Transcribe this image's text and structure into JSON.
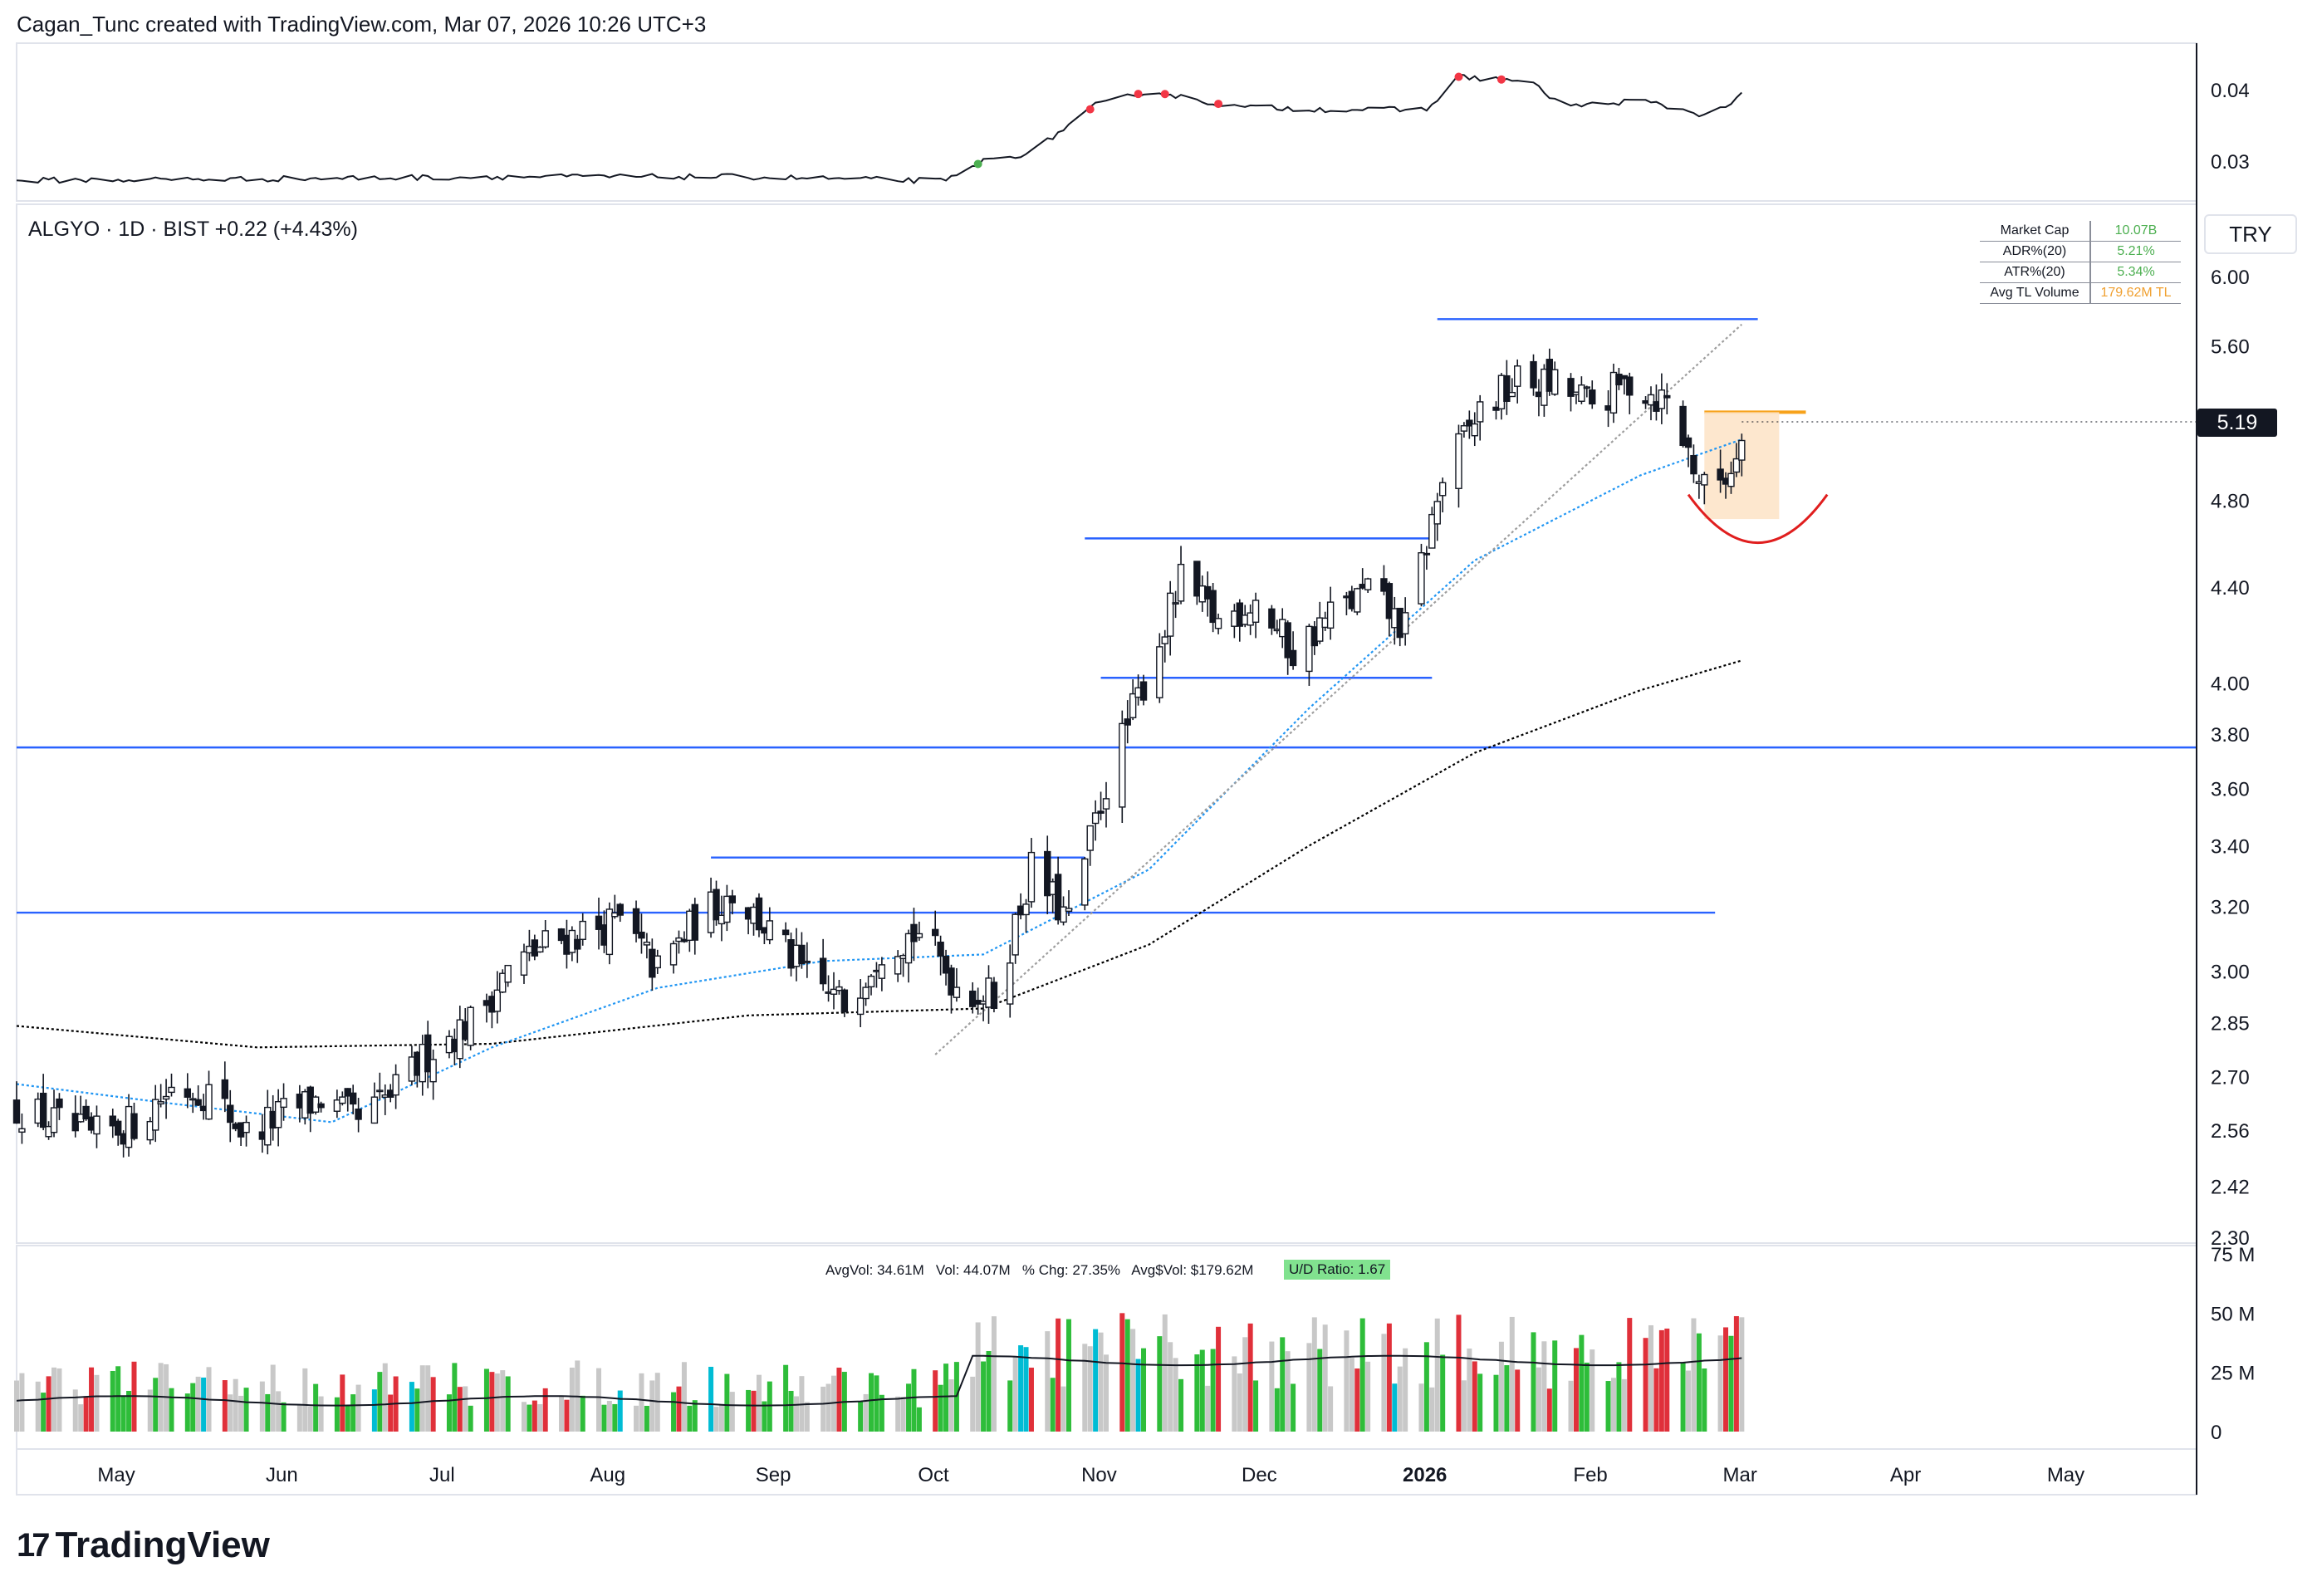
{
  "header": {
    "credit": "Cagan_Tunc created with TradingView.com, Mar 07, 2026 10:26 UTC+3",
    "symbol_line": "ALGYO · 1D · BIST  +0.22 (+4.43%)",
    "currency_button": "TRY",
    "current_price_label": "5.19"
  },
  "stats": [
    {
      "label": "Market Cap",
      "value": "10.07B",
      "color": "#4caf50"
    },
    {
      "label": "ADR%(20)",
      "value": "5.21%",
      "color": "#4caf50"
    },
    {
      "label": "ATR%(20)",
      "value": "5.34%",
      "color": "#4caf50"
    },
    {
      "label": "Avg TL Volume",
      "value": "179.62M TL",
      "color": "#f0a030"
    }
  ],
  "volume_info": {
    "text": "AvgVol: 34.61M   Vol: 44.07M   % Chg: 27.35%   Avg$Vol: $179.62M",
    "ud_ratio": "U/D Ratio: 1.67"
  },
  "footer": {
    "logo_mark": "17",
    "logo_text": "TradingView"
  },
  "chart_data": [
    {
      "type": "candlestick",
      "role": "main price pane (log scale)",
      "y_scale": "log",
      "ylim": [
        2.3,
        6.0
      ],
      "y_ticks": [
        "6.00",
        "5.60",
        "5.19",
        "4.80",
        "4.40",
        "4.00",
        "3.80",
        "3.60",
        "3.40",
        "3.20",
        "3.00",
        "2.85",
        "2.70",
        "2.56",
        "2.42",
        "2.30"
      ],
      "x_ticks": [
        "May",
        "Jun",
        "Jul",
        "Aug",
        "Sep",
        "Oct",
        "Nov",
        "Dec",
        "2026",
        "Feb",
        "Mar",
        "Apr",
        "May"
      ],
      "x_range": [
        "2025-04-17",
        "2026-05-30"
      ],
      "close_path": [
        [
          "2025-04-17",
          2.62
        ],
        [
          "2025-05-01",
          2.54
        ],
        [
          "2025-05-09",
          2.58
        ],
        [
          "2025-05-16",
          2.67
        ],
        [
          "2025-05-23",
          2.66
        ],
        [
          "2025-05-30",
          2.55
        ],
        [
          "2025-06-06",
          2.6
        ],
        [
          "2025-06-13",
          2.64
        ],
        [
          "2025-06-20",
          2.58
        ],
        [
          "2025-06-27",
          2.66
        ],
        [
          "2025-07-04",
          2.78
        ],
        [
          "2025-07-11",
          2.85
        ],
        [
          "2025-07-18",
          3.0
        ],
        [
          "2025-07-25",
          3.08
        ],
        [
          "2025-08-01",
          3.12
        ],
        [
          "2025-08-08",
          3.15
        ],
        [
          "2025-08-15",
          3.0
        ],
        [
          "2025-08-22",
          3.15
        ],
        [
          "2025-08-29",
          3.25
        ],
        [
          "2025-09-05",
          3.12
        ],
        [
          "2025-09-12",
          2.98
        ],
        [
          "2025-09-19",
          2.9
        ],
        [
          "2025-09-26",
          3.08
        ],
        [
          "2025-10-03",
          3.12
        ],
        [
          "2025-10-10",
          2.96
        ],
        [
          "2025-10-17",
          2.92
        ],
        [
          "2025-10-24",
          3.32
        ],
        [
          "2025-10-31",
          3.15
        ],
        [
          "2025-11-07",
          3.62
        ],
        [
          "2025-11-14",
          4.0
        ],
        [
          "2025-11-21",
          4.42
        ],
        [
          "2025-11-28",
          4.25
        ],
        [
          "2025-12-05",
          4.35
        ],
        [
          "2025-12-12",
          4.12
        ],
        [
          "2025-12-19",
          4.28
        ],
        [
          "2025-12-26",
          4.38
        ],
        [
          "2026-01-02",
          4.22
        ],
        [
          "2026-01-09",
          4.9
        ],
        [
          "2026-01-16",
          5.25
        ],
        [
          "2026-01-23",
          5.4
        ],
        [
          "2026-01-30",
          5.38
        ],
        [
          "2026-02-06",
          5.28
        ],
        [
          "2026-02-13",
          5.4
        ],
        [
          "2026-02-20",
          5.3
        ],
        [
          "2026-02-27",
          4.85
        ],
        [
          "2026-03-04",
          4.95
        ],
        [
          "2026-03-06",
          5.19
        ]
      ],
      "horizontal_levels": [
        {
          "y": 5.75,
          "from": "2026-01-08",
          "to": "2026-03-09",
          "color": "#2962ff"
        },
        {
          "y": 4.62,
          "from": "2025-11-03",
          "to": "2026-01-07",
          "color": "#2962ff"
        },
        {
          "y": 4.02,
          "from": "2025-11-06",
          "to": "2026-01-07",
          "color": "#2962ff"
        },
        {
          "y": 3.75,
          "from": "2025-04-17",
          "to": "2026-05-30",
          "color": "#2962ff"
        },
        {
          "y": 3.36,
          "from": "2025-08-25",
          "to": "2025-11-03",
          "color": "#2962ff"
        },
        {
          "y": 3.18,
          "from": "2025-04-17",
          "to": "2026-03-01",
          "color": "#2962ff"
        },
        {
          "y": 5.24,
          "from": "2026-02-27",
          "to": "2026-03-18",
          "color": "#f7a21b"
        }
      ],
      "moving_averages": [
        {
          "color": "#000000",
          "style": "dotted",
          "points": [
            [
              "2025-04-17",
              2.84
            ],
            [
              "2025-06-01",
              2.78
            ],
            [
              "2025-07-15",
              2.79
            ],
            [
              "2025-09-01",
              2.87
            ],
            [
              "2025-10-15",
              2.89
            ],
            [
              "2025-11-15",
              3.08
            ],
            [
              "2025-12-15",
              3.4
            ],
            [
              "2026-01-15",
              3.73
            ],
            [
              "2026-02-15",
              3.97
            ],
            [
              "2026-03-06",
              4.09
            ]
          ]
        },
        {
          "color": "#2196f3",
          "style": "dotted",
          "points": [
            [
              "2025-04-17",
              2.68
            ],
            [
              "2025-05-15",
              2.63
            ],
            [
              "2025-06-15",
              2.58
            ],
            [
              "2025-07-15",
              2.78
            ],
            [
              "2025-08-15",
              2.95
            ],
            [
              "2025-09-15",
              3.03
            ],
            [
              "2025-10-15",
              3.05
            ],
            [
              "2025-11-15",
              3.32
            ],
            [
              "2025-12-15",
              3.9
            ],
            [
              "2026-01-15",
              4.52
            ],
            [
              "2026-02-15",
              4.92
            ],
            [
              "2026-03-06",
              5.1
            ]
          ]
        },
        {
          "color": "#9e9e9e",
          "style": "dotted",
          "points": [
            [
              "2025-10-06",
              2.76
            ],
            [
              "2026-03-06",
              5.72
            ]
          ]
        }
      ],
      "annotations": [
        {
          "type": "rectangle",
          "from": "2026-02-27",
          "to": "2026-03-13",
          "y": [
            4.71,
            5.24
          ],
          "color": "#fde4c9"
        },
        {
          "type": "arc",
          "from": "2026-02-24",
          "to": "2026-03-22",
          "bottom": 4.6,
          "color": "#e01e1e"
        }
      ]
    },
    {
      "type": "line",
      "role": "top indicator pane",
      "y_ticks": [
        "0.04",
        "0.03"
      ],
      "points": [
        [
          "2025-04-17",
          0.0273
        ],
        [
          "2025-06-01",
          0.0275
        ],
        [
          "2025-07-15",
          0.0278
        ],
        [
          "2025-09-01",
          0.0278
        ],
        [
          "2025-10-08",
          0.0272
        ],
        [
          "2025-10-15",
          0.03
        ],
        [
          "2025-10-24",
          0.0312
        ],
        [
          "2025-11-05",
          0.0378
        ],
        [
          "2025-11-15",
          0.0398
        ],
        [
          "2025-12-01",
          0.0376
        ],
        [
          "2025-12-20",
          0.0372
        ],
        [
          "2026-01-06",
          0.0372
        ],
        [
          "2026-01-12",
          0.0418
        ],
        [
          "2026-01-25",
          0.0412
        ],
        [
          "2026-02-01",
          0.0376
        ],
        [
          "2026-02-15",
          0.0385
        ],
        [
          "2026-02-28",
          0.0363
        ],
        [
          "2026-03-06",
          0.0392
        ]
      ]
    },
    {
      "type": "bar",
      "role": "volume pane",
      "y_ticks": [
        "75 M",
        "50 M",
        "25 M",
        "0"
      ],
      "ylim": [
        0,
        75
      ],
      "unit": "M"
    }
  ]
}
